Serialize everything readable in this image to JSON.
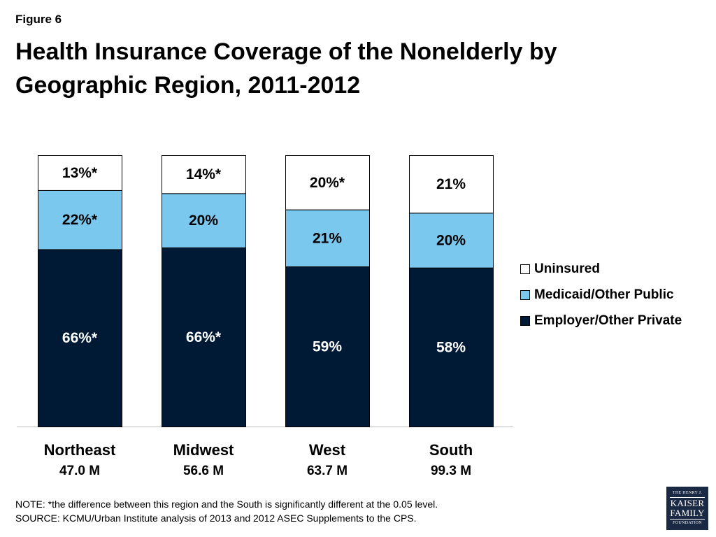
{
  "figure_label": "Figure 6",
  "title": "Health Insurance Coverage of the Nonelderly by Geographic Region, 2011-2012",
  "colors": {
    "uninsured": "#ffffff",
    "medicaid": "#7ac8ee",
    "employer": "#001a36",
    "outline": "#000000"
  },
  "chart_data": {
    "type": "bar",
    "stacked": true,
    "categories": [
      "Northeast",
      "Midwest",
      "West",
      "South"
    ],
    "category_sublabels": [
      "47.0 M",
      "56.6 M",
      "63.7 M",
      "99.3 M"
    ],
    "series": [
      {
        "name": "Employer/Other Private",
        "values": [
          66,
          66,
          59,
          58
        ],
        "labels": [
          "66%*",
          "66%*",
          "59%",
          "58%"
        ]
      },
      {
        "name": "Medicaid/Other Public",
        "values": [
          22,
          20,
          21,
          20
        ],
        "labels": [
          "22%*",
          "20%",
          "21%",
          "20%"
        ]
      },
      {
        "name": "Uninsured",
        "values": [
          13,
          14,
          20,
          21
        ],
        "labels": [
          "13%*",
          "14%*",
          "20%*",
          "21%"
        ]
      }
    ],
    "ylim": [
      0,
      100
    ],
    "legend": [
      "Uninsured",
      "Medicaid/Other Public",
      "Employer/Other Private"
    ],
    "legend_position": "right"
  },
  "notes": {
    "note": "NOTE: *the difference between this region and the South is significantly different at the 0.05 level.",
    "source": "SOURCE: KCMU/Urban Institute analysis of 2013 and 2012 ASEC Supplements to the CPS."
  },
  "logo": {
    "line1": "THE HENRY J.",
    "line2": "KAISER",
    "line3": "FAMILY",
    "line4": "FOUNDATION"
  }
}
